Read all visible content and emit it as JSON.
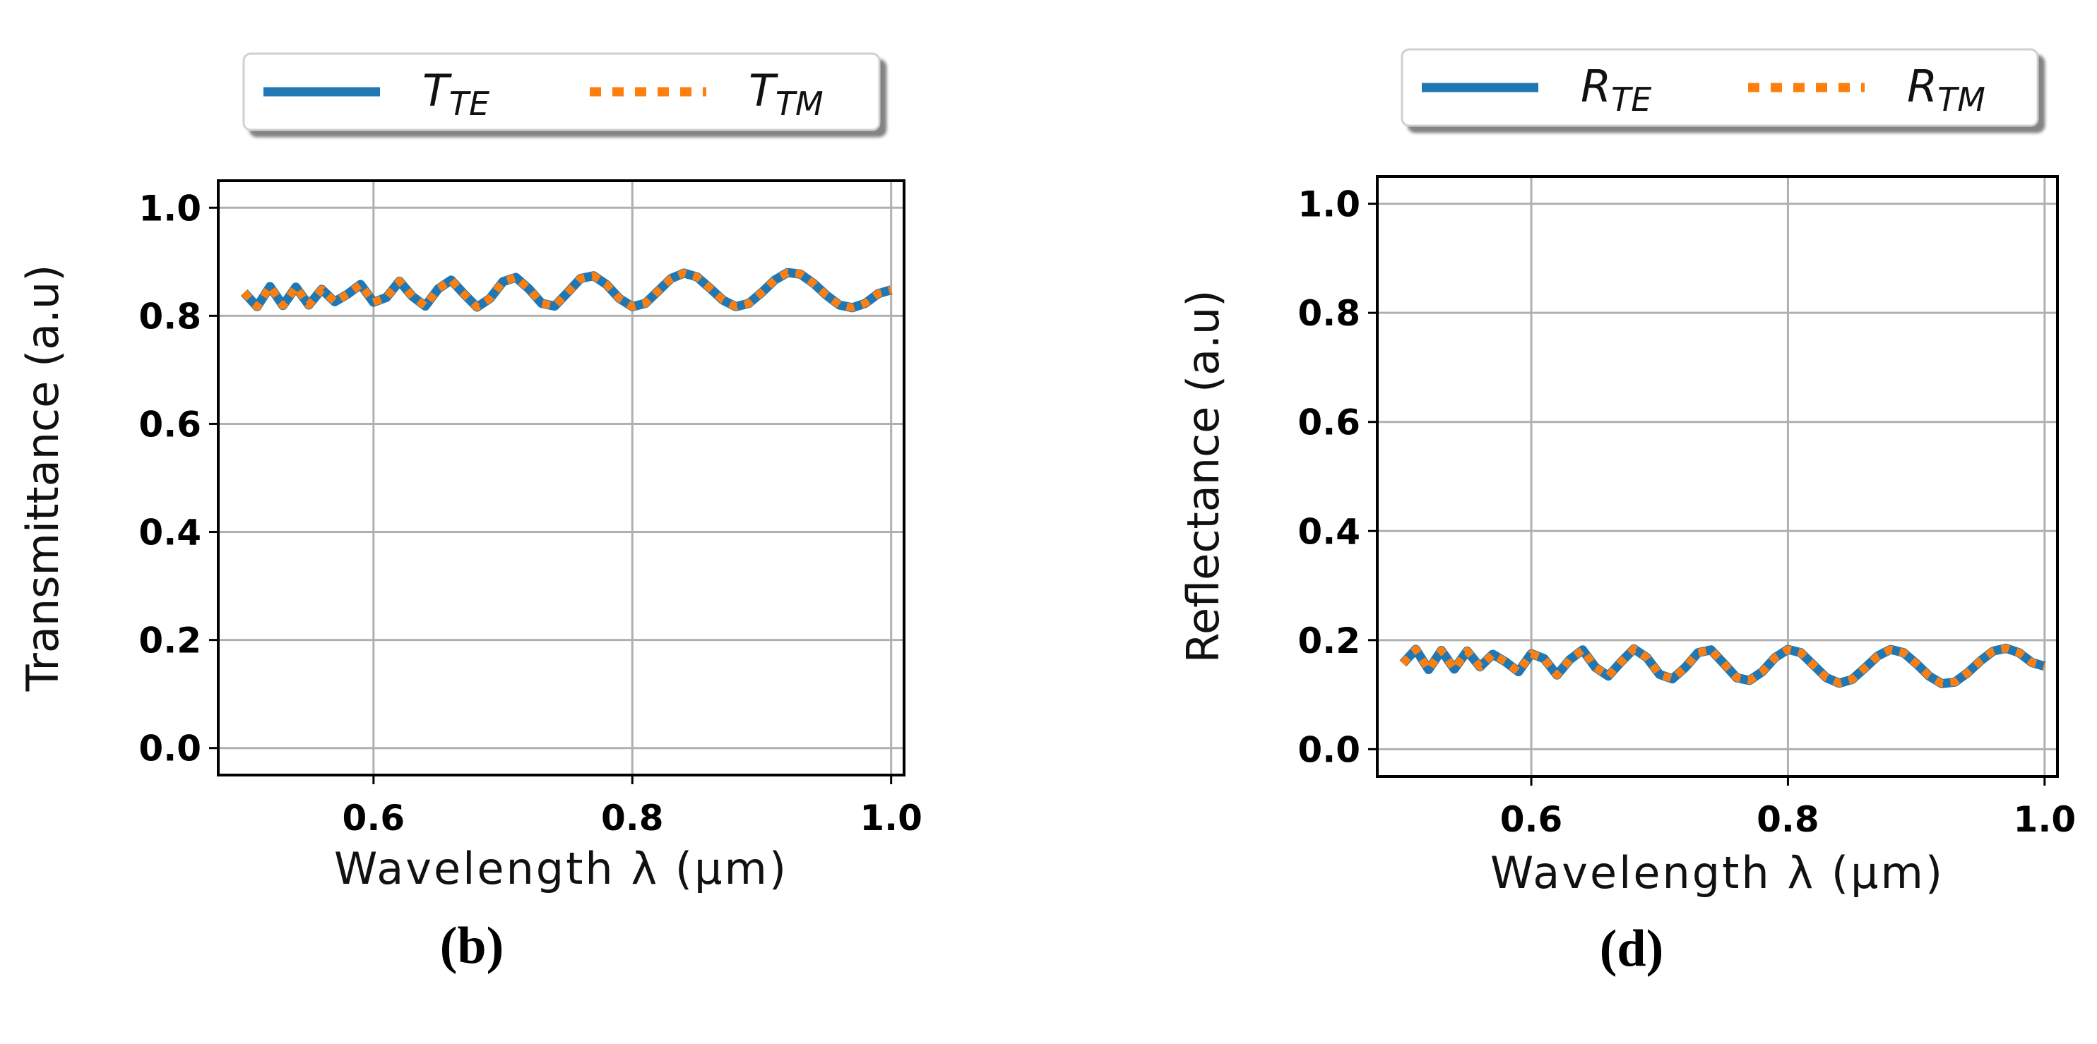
{
  "figure": {
    "panels": [
      {
        "label": "(b)",
        "legend": [
          {
            "base": "T",
            "sub": "TE",
            "style": "solid",
            "color": "#1f77b4"
          },
          {
            "base": "T",
            "sub": "TM",
            "style": "dotted",
            "color": "#ff7f0e"
          }
        ]
      },
      {
        "label": "(d)",
        "legend": [
          {
            "base": "R",
            "sub": "TE",
            "style": "solid",
            "color": "#1f77b4"
          },
          {
            "base": "R",
            "sub": "TM",
            "style": "dotted",
            "color": "#ff7f0e"
          }
        ]
      }
    ]
  },
  "chart_data": [
    {
      "type": "line",
      "title": "",
      "xlabel": "Wavelength λ (μm)",
      "ylabel": "Transmittance (a.u)",
      "xlim": [
        0.48,
        1.01
      ],
      "ylim": [
        -0.05,
        1.05
      ],
      "xticks": [
        0.6,
        0.8,
        1.0
      ],
      "xtick_labels": [
        "0.6",
        "0.8",
        "1.0"
      ],
      "yticks": [
        0.0,
        0.2,
        0.4,
        0.6,
        0.8,
        1.0
      ],
      "ytick_labels": [
        "0.0",
        "0.2",
        "0.4",
        "0.6",
        "0.8",
        "1.0"
      ],
      "grid": true,
      "legend_position": "top-center-outside",
      "x": [
        0.5,
        0.51,
        0.52,
        0.53,
        0.54,
        0.55,
        0.56,
        0.57,
        0.58,
        0.59,
        0.6,
        0.61,
        0.62,
        0.63,
        0.64,
        0.65,
        0.66,
        0.67,
        0.68,
        0.69,
        0.7,
        0.71,
        0.72,
        0.73,
        0.74,
        0.75,
        0.76,
        0.77,
        0.78,
        0.79,
        0.8,
        0.81,
        0.82,
        0.83,
        0.84,
        0.85,
        0.86,
        0.87,
        0.88,
        0.89,
        0.9,
        0.91,
        0.92,
        0.93,
        0.94,
        0.95,
        0.96,
        0.97,
        0.98,
        0.99,
        1.0
      ],
      "series": [
        {
          "name": "T_TE",
          "color": "#1f77b4",
          "style": "solid",
          "values": [
            0.843,
            0.817,
            0.854,
            0.819,
            0.853,
            0.82,
            0.849,
            0.826,
            0.84,
            0.858,
            0.825,
            0.834,
            0.864,
            0.836,
            0.818,
            0.85,
            0.866,
            0.84,
            0.816,
            0.832,
            0.863,
            0.871,
            0.85,
            0.823,
            0.818,
            0.843,
            0.869,
            0.874,
            0.858,
            0.832,
            0.817,
            0.823,
            0.846,
            0.869,
            0.879,
            0.872,
            0.851,
            0.829,
            0.817,
            0.823,
            0.843,
            0.866,
            0.88,
            0.877,
            0.86,
            0.838,
            0.82,
            0.815,
            0.823,
            0.841,
            0.848
          ]
        },
        {
          "name": "T_TM",
          "color": "#ff7f0e",
          "style": "dotted",
          "values": [
            0.843,
            0.817,
            0.854,
            0.819,
            0.853,
            0.82,
            0.849,
            0.826,
            0.84,
            0.858,
            0.825,
            0.834,
            0.864,
            0.836,
            0.818,
            0.85,
            0.866,
            0.84,
            0.816,
            0.832,
            0.863,
            0.871,
            0.85,
            0.823,
            0.818,
            0.843,
            0.869,
            0.874,
            0.858,
            0.832,
            0.817,
            0.823,
            0.846,
            0.869,
            0.879,
            0.872,
            0.851,
            0.829,
            0.817,
            0.823,
            0.843,
            0.866,
            0.88,
            0.877,
            0.86,
            0.838,
            0.82,
            0.815,
            0.823,
            0.841,
            0.848
          ]
        }
      ]
    },
    {
      "type": "line",
      "title": "",
      "xlabel": "Wavelength λ (μm)",
      "ylabel": "Reflectance (a.u)",
      "xlim": [
        0.48,
        1.01
      ],
      "ylim": [
        -0.05,
        1.05
      ],
      "xticks": [
        0.6,
        0.8,
        1.0
      ],
      "xtick_labels": [
        "0.6",
        "0.8",
        "1.0"
      ],
      "yticks": [
        0.0,
        0.2,
        0.4,
        0.6,
        0.8,
        1.0
      ],
      "ytick_labels": [
        "0.0",
        "0.2",
        "0.4",
        "0.6",
        "0.8",
        "1.0"
      ],
      "grid": true,
      "legend_position": "top-center-outside",
      "x": [
        0.5,
        0.51,
        0.52,
        0.53,
        0.54,
        0.55,
        0.56,
        0.57,
        0.58,
        0.59,
        0.6,
        0.61,
        0.62,
        0.63,
        0.64,
        0.65,
        0.66,
        0.67,
        0.68,
        0.69,
        0.7,
        0.71,
        0.72,
        0.73,
        0.74,
        0.75,
        0.76,
        0.77,
        0.78,
        0.79,
        0.8,
        0.81,
        0.82,
        0.83,
        0.84,
        0.85,
        0.86,
        0.87,
        0.88,
        0.89,
        0.9,
        0.91,
        0.92,
        0.93,
        0.94,
        0.95,
        0.96,
        0.97,
        0.98,
        0.99,
        1.0
      ],
      "series": [
        {
          "name": "R_TE",
          "color": "#1f77b4",
          "style": "solid",
          "values": [
            0.157,
            0.183,
            0.146,
            0.181,
            0.147,
            0.18,
            0.151,
            0.174,
            0.16,
            0.142,
            0.175,
            0.166,
            0.136,
            0.164,
            0.182,
            0.15,
            0.134,
            0.16,
            0.184,
            0.168,
            0.137,
            0.129,
            0.15,
            0.177,
            0.182,
            0.157,
            0.131,
            0.126,
            0.142,
            0.168,
            0.183,
            0.177,
            0.154,
            0.131,
            0.121,
            0.128,
            0.149,
            0.171,
            0.183,
            0.177,
            0.157,
            0.134,
            0.12,
            0.123,
            0.14,
            0.162,
            0.18,
            0.185,
            0.177,
            0.159,
            0.152
          ]
        },
        {
          "name": "R_TM",
          "color": "#ff7f0e",
          "style": "dotted",
          "values": [
            0.157,
            0.183,
            0.146,
            0.181,
            0.147,
            0.18,
            0.151,
            0.174,
            0.16,
            0.142,
            0.175,
            0.166,
            0.136,
            0.164,
            0.182,
            0.15,
            0.134,
            0.16,
            0.184,
            0.168,
            0.137,
            0.129,
            0.15,
            0.177,
            0.182,
            0.157,
            0.131,
            0.126,
            0.142,
            0.168,
            0.183,
            0.177,
            0.154,
            0.131,
            0.121,
            0.128,
            0.149,
            0.171,
            0.183,
            0.177,
            0.157,
            0.134,
            0.12,
            0.123,
            0.14,
            0.162,
            0.18,
            0.185,
            0.177,
            0.159,
            0.152
          ]
        }
      ]
    }
  ]
}
